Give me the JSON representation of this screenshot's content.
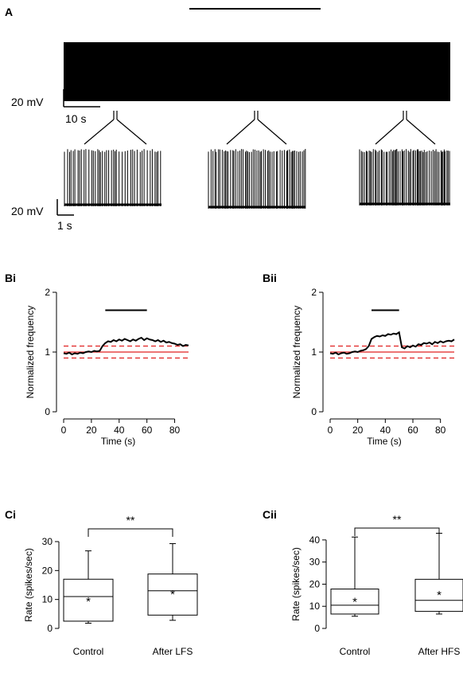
{
  "panel_labels": {
    "A": "A",
    "Bi": "Bi",
    "Bii": "Bii",
    "Ci": "Ci",
    "Cii": "Cii"
  },
  "panel_A": {
    "scale_voltage": "20 mV",
    "scale_time_top": "10 s",
    "scale_time_bottom": "1 s",
    "zoom_break": "//"
  },
  "chart_data": [
    {
      "id": "Bi",
      "type": "line",
      "ylabel": "Normalized frequency",
      "xlabel": "Time (s)",
      "xticks": [
        0,
        20,
        40,
        60,
        80
      ],
      "yticks": [
        0,
        1,
        2
      ],
      "xlim": [
        0,
        90
      ],
      "ylim": [
        0,
        2
      ],
      "stim_bar": [
        30,
        60
      ],
      "mean_line": 1.0,
      "bounds": [
        0.9,
        1.1
      ],
      "series": [
        {
          "x": [
            0,
            2,
            4,
            6,
            8,
            10,
            12,
            14,
            16,
            18,
            20,
            22,
            24,
            26,
            28,
            30,
            32,
            34,
            36,
            38,
            40,
            42,
            44,
            46,
            48,
            50,
            52,
            54,
            56,
            58,
            60,
            62,
            64,
            66,
            68,
            70,
            72,
            74,
            76,
            78,
            80,
            82,
            84,
            86,
            88,
            90
          ],
          "values": [
            0.98,
            0.97,
            0.99,
            0.96,
            0.98,
            0.97,
            0.99,
            0.98,
            1.0,
            1.01,
            1.0,
            1.02,
            1.01,
            1.02,
            1.1,
            1.15,
            1.18,
            1.17,
            1.2,
            1.18,
            1.21,
            1.19,
            1.22,
            1.2,
            1.18,
            1.21,
            1.19,
            1.22,
            1.24,
            1.2,
            1.23,
            1.21,
            1.2,
            1.18,
            1.2,
            1.17,
            1.19,
            1.16,
            1.17,
            1.15,
            1.14,
            1.12,
            1.13,
            1.1,
            1.12,
            1.11
          ]
        }
      ]
    },
    {
      "id": "Bii",
      "type": "line",
      "ylabel": "Normalized frequency",
      "xlabel": "Time (s)",
      "xticks": [
        0,
        20,
        40,
        60,
        80
      ],
      "yticks": [
        0,
        1,
        2
      ],
      "xlim": [
        0,
        90
      ],
      "ylim": [
        0,
        2
      ],
      "stim_bar": [
        30,
        50
      ],
      "mean_line": 1.0,
      "bounds": [
        0.9,
        1.1
      ],
      "series": [
        {
          "x": [
            0,
            2,
            4,
            6,
            8,
            10,
            12,
            14,
            16,
            18,
            20,
            22,
            24,
            26,
            28,
            30,
            32,
            34,
            36,
            38,
            40,
            42,
            44,
            46,
            48,
            50,
            52,
            54,
            56,
            58,
            60,
            62,
            64,
            66,
            68,
            70,
            72,
            74,
            76,
            78,
            80,
            82,
            84,
            86,
            88,
            90
          ],
          "values": [
            0.98,
            0.97,
            0.99,
            0.96,
            0.98,
            0.99,
            0.97,
            0.98,
            1.0,
            1.01,
            1.0,
            1.02,
            1.03,
            1.05,
            1.1,
            1.22,
            1.25,
            1.27,
            1.26,
            1.28,
            1.27,
            1.3,
            1.29,
            1.31,
            1.3,
            1.33,
            1.08,
            1.06,
            1.1,
            1.08,
            1.11,
            1.09,
            1.13,
            1.12,
            1.15,
            1.14,
            1.16,
            1.13,
            1.17,
            1.15,
            1.18,
            1.16,
            1.18,
            1.19,
            1.18,
            1.21
          ]
        }
      ]
    },
    {
      "id": "Ci",
      "type": "box",
      "ylabel": "Rate (spikes/sec)",
      "categories": [
        "Control",
        "After LFS"
      ],
      "yticks": [
        0,
        10,
        20,
        30
      ],
      "ylim": [
        0,
        30
      ],
      "significance": "**",
      "boxes": [
        {
          "min": 1.8,
          "q1": 2.5,
          "median": 11.0,
          "q3": 17.0,
          "max": 26.8,
          "mean": 10.5
        },
        {
          "min": 2.8,
          "q1": 4.6,
          "median": 13.0,
          "q3": 18.8,
          "max": 29.3,
          "mean": 13.0
        }
      ]
    },
    {
      "id": "Cii",
      "type": "box",
      "ylabel": "Rate (spikes/sec)",
      "categories": [
        "Control",
        "After HFS"
      ],
      "yticks": [
        0,
        10,
        20,
        30,
        40
      ],
      "ylim": [
        0,
        45
      ],
      "significance": "**",
      "boxes": [
        {
          "min": 5.5,
          "q1": 6.5,
          "median": 10.5,
          "q3": 17.8,
          "max": 41.3,
          "mean": 13.5
        },
        {
          "min": 6.5,
          "q1": 7.7,
          "median": 12.7,
          "q3": 22.2,
          "max": 43.0,
          "mean": 16.5
        }
      ]
    }
  ]
}
